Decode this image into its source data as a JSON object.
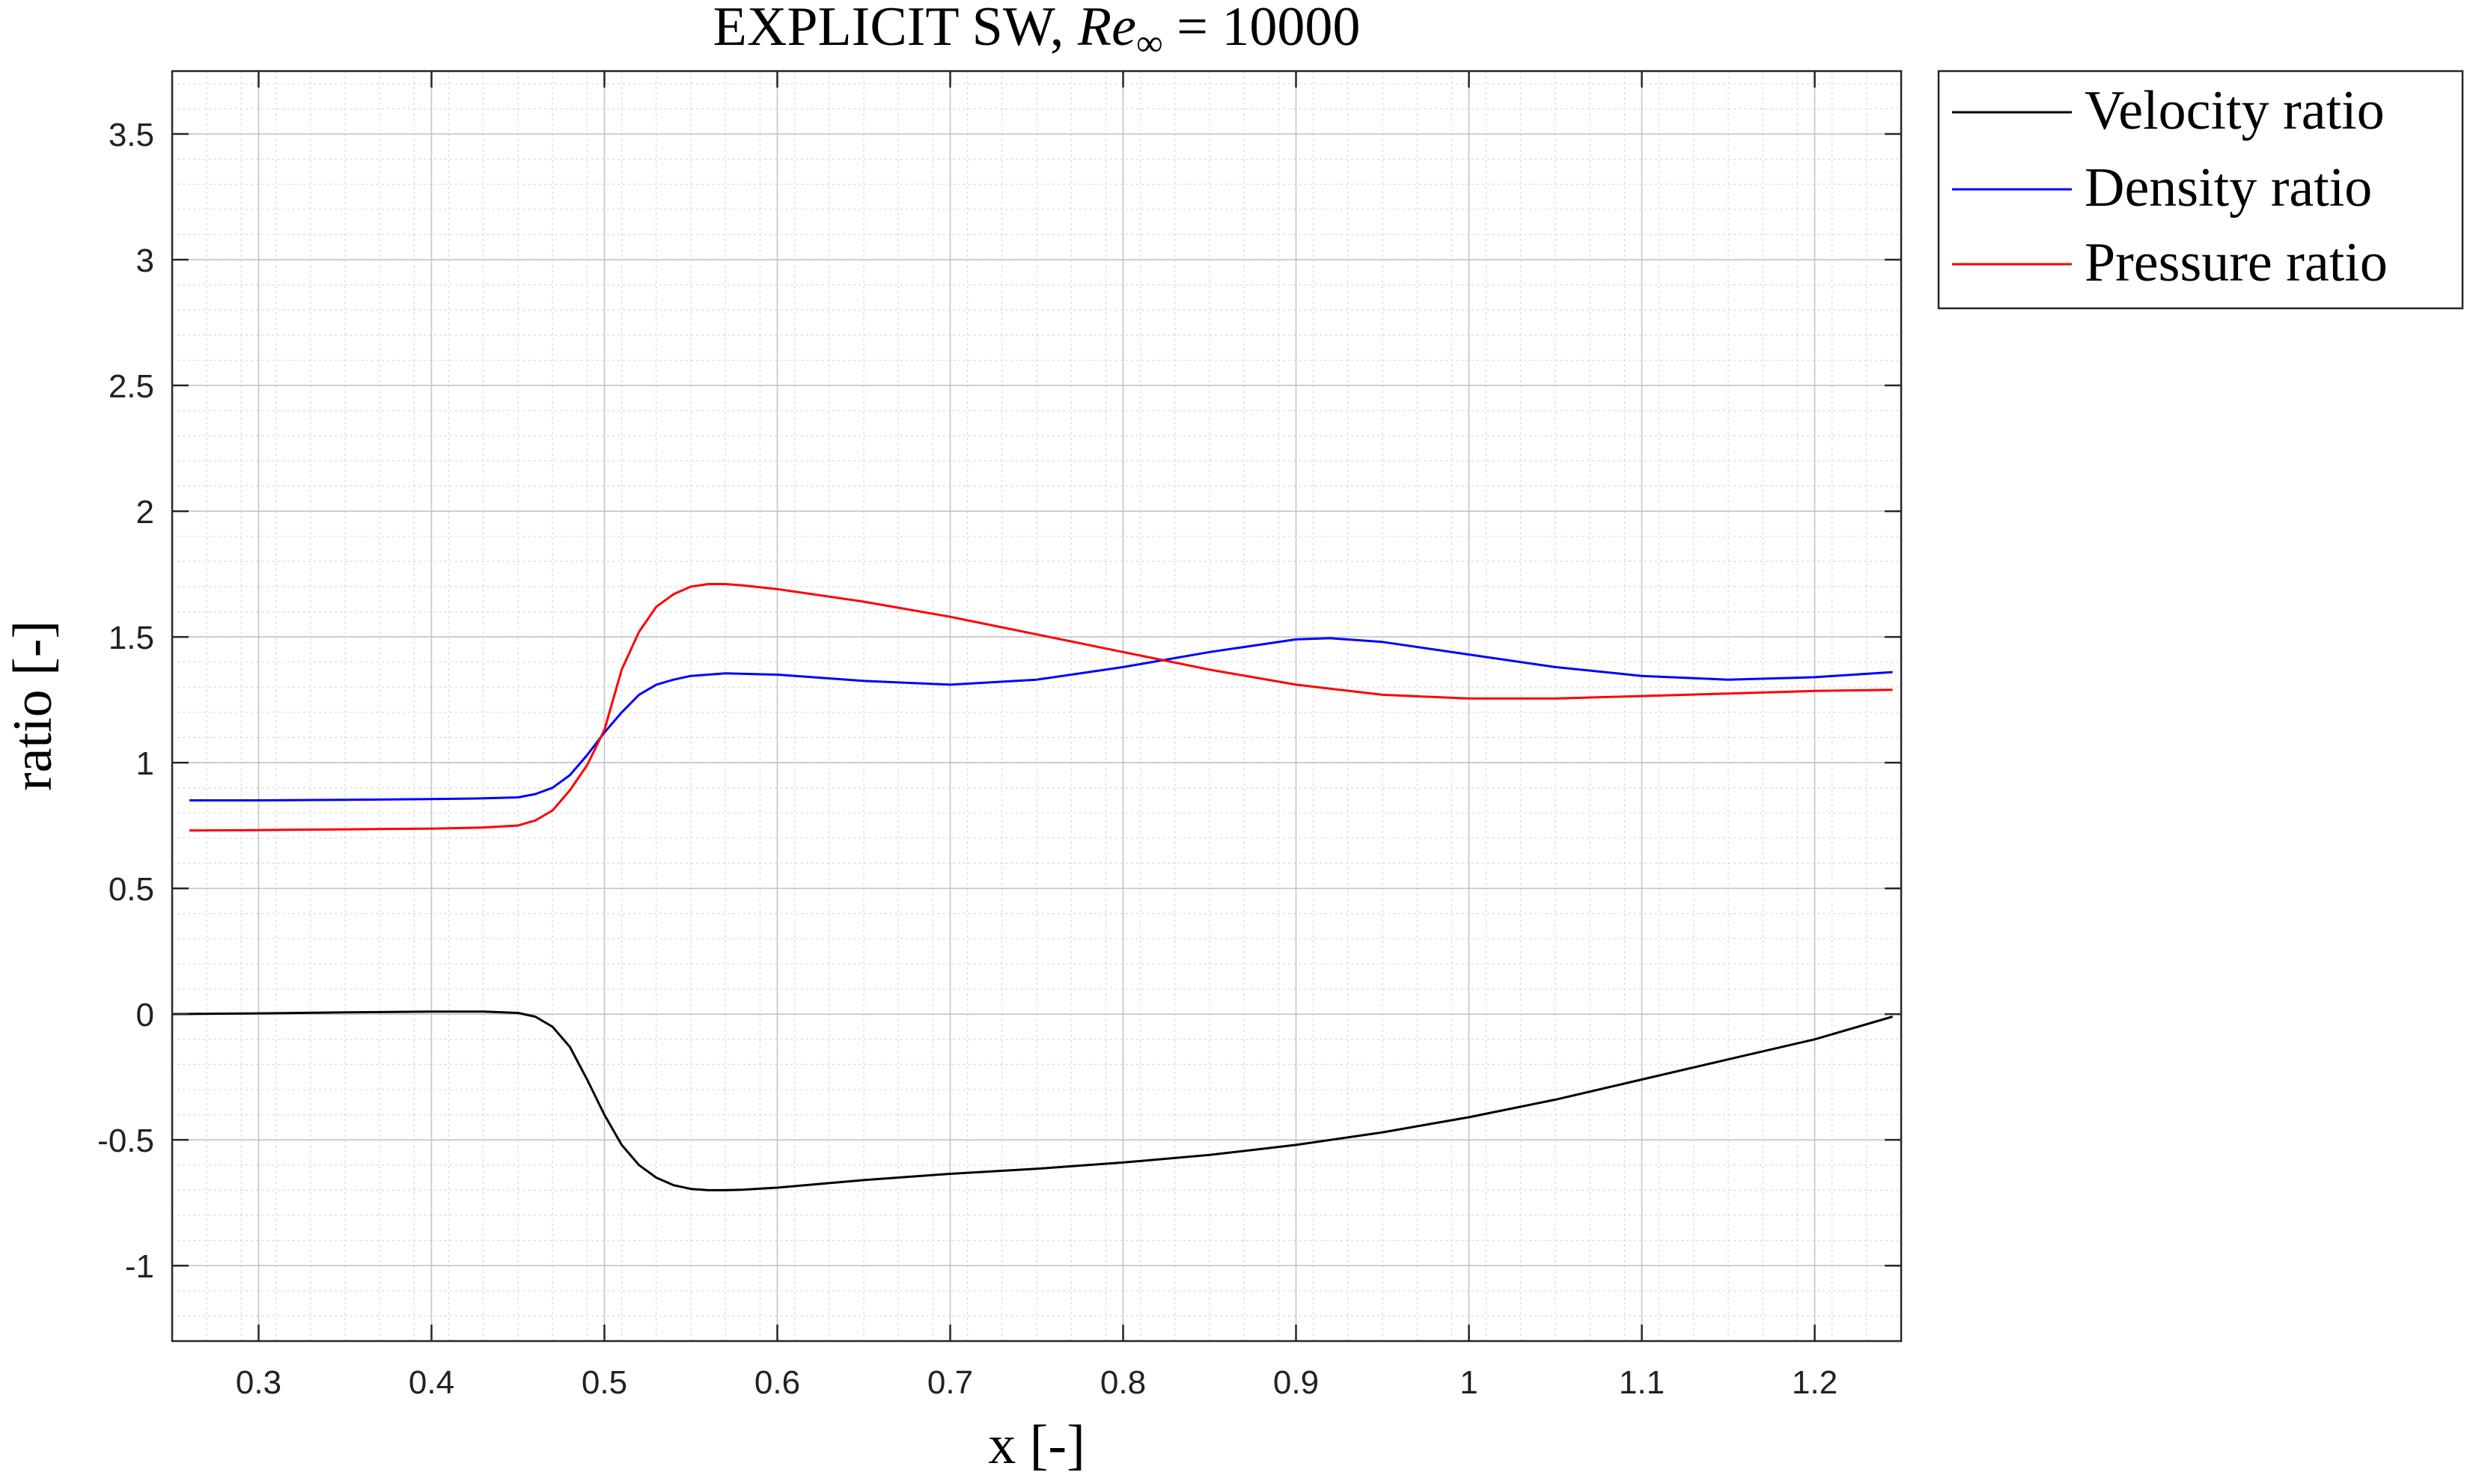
{
  "chart_data": {
    "type": "line",
    "title": {
      "prefix": "EXPLICIT SW, ",
      "var": "Re",
      "sub": "∞",
      "suffix": " = 10000"
    },
    "xlabel": "x [-]",
    "ylabel": "ratio [-]",
    "xlim": [
      0.25,
      1.25
    ],
    "ylim": [
      -1.3,
      3.75
    ],
    "xticks": [
      0.3,
      0.4,
      0.5,
      0.6,
      0.7,
      0.8,
      0.9,
      1,
      1.1,
      1.2
    ],
    "xtick_labels": [
      "0.3",
      "0.4",
      "0.5",
      "0.6",
      "0.7",
      "0.8",
      "0.9",
      "1",
      "1.1",
      "1.2"
    ],
    "yticks": [
      -1,
      -0.5,
      0,
      0.5,
      1,
      1.5,
      2,
      2.5,
      3,
      3.5
    ],
    "ytick_labels": [
      "-1",
      "-0.5",
      "0",
      "0.5",
      "1",
      "1.5",
      "2",
      "2.5",
      "3",
      "3.5"
    ],
    "grid": true,
    "minor_grid": true,
    "legend_position": "outside top-right",
    "series": [
      {
        "name": "Velocity ratio",
        "color": "#000000",
        "x": [
          0.25,
          0.3,
          0.35,
          0.4,
          0.43,
          0.45,
          0.46,
          0.47,
          0.48,
          0.49,
          0.5,
          0.51,
          0.52,
          0.53,
          0.54,
          0.55,
          0.56,
          0.57,
          0.58,
          0.6,
          0.65,
          0.7,
          0.75,
          0.8,
          0.85,
          0.9,
          0.95,
          1.0,
          1.05,
          1.1,
          1.15,
          1.2,
          1.245
        ],
        "y": [
          0.0,
          0.003,
          0.007,
          0.01,
          0.01,
          0.005,
          -0.01,
          -0.05,
          -0.13,
          -0.26,
          -0.4,
          -0.52,
          -0.6,
          -0.65,
          -0.68,
          -0.695,
          -0.7,
          -0.7,
          -0.698,
          -0.69,
          -0.66,
          -0.635,
          -0.615,
          -0.59,
          -0.56,
          -0.52,
          -0.47,
          -0.41,
          -0.34,
          -0.26,
          -0.18,
          -0.1,
          -0.01
        ]
      },
      {
        "name": "Density ratio",
        "color": "#0000ff",
        "x": [
          0.26,
          0.3,
          0.35,
          0.4,
          0.43,
          0.45,
          0.46,
          0.47,
          0.48,
          0.49,
          0.5,
          0.51,
          0.52,
          0.53,
          0.54,
          0.55,
          0.57,
          0.6,
          0.65,
          0.7,
          0.75,
          0.8,
          0.85,
          0.9,
          0.92,
          0.95,
          1.0,
          1.05,
          1.1,
          1.15,
          1.2,
          1.245
        ],
        "y": [
          0.85,
          0.85,
          0.852,
          0.855,
          0.858,
          0.862,
          0.875,
          0.9,
          0.95,
          1.03,
          1.12,
          1.2,
          1.27,
          1.31,
          1.33,
          1.345,
          1.355,
          1.35,
          1.325,
          1.31,
          1.33,
          1.38,
          1.44,
          1.49,
          1.495,
          1.48,
          1.43,
          1.38,
          1.345,
          1.33,
          1.34,
          1.36
        ]
      },
      {
        "name": "Pressure ratio",
        "color": "#ff0000",
        "x": [
          0.26,
          0.3,
          0.35,
          0.4,
          0.43,
          0.45,
          0.46,
          0.47,
          0.48,
          0.49,
          0.5,
          0.51,
          0.52,
          0.53,
          0.54,
          0.55,
          0.56,
          0.57,
          0.58,
          0.6,
          0.65,
          0.7,
          0.75,
          0.8,
          0.85,
          0.9,
          0.95,
          1.0,
          1.05,
          1.1,
          1.15,
          1.2,
          1.245
        ],
        "y": [
          0.73,
          0.732,
          0.735,
          0.738,
          0.742,
          0.75,
          0.77,
          0.81,
          0.89,
          0.99,
          1.13,
          1.37,
          1.52,
          1.62,
          1.67,
          1.7,
          1.71,
          1.71,
          1.705,
          1.69,
          1.64,
          1.58,
          1.51,
          1.44,
          1.37,
          1.31,
          1.27,
          1.255,
          1.255,
          1.265,
          1.275,
          1.285,
          1.29
        ]
      }
    ]
  }
}
